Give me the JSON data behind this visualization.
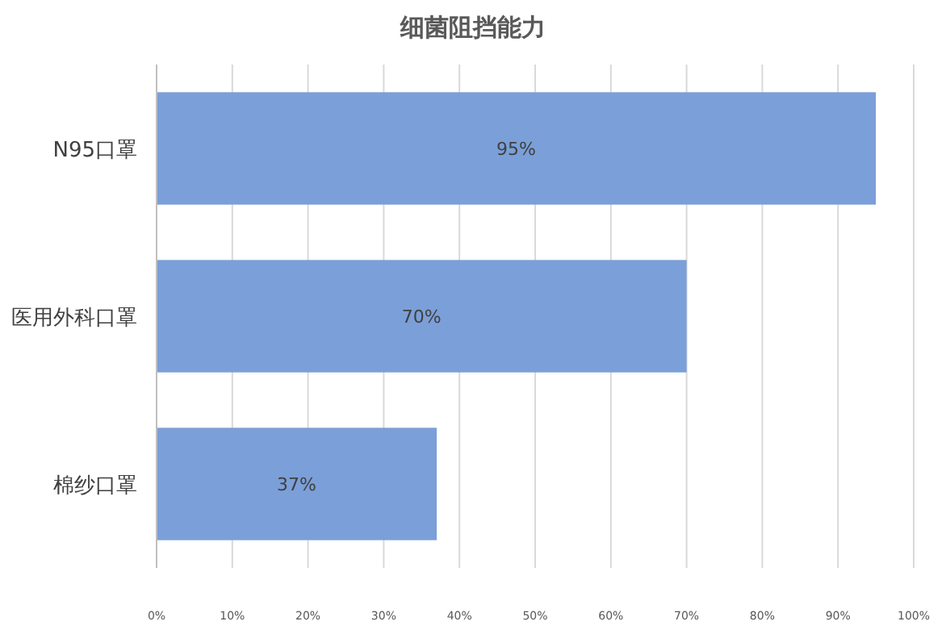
{
  "chart_data": {
    "type": "bar",
    "orientation": "horizontal",
    "title": "细菌阻挡能力",
    "categories": [
      "N95口罩",
      "医用外科口罩",
      "棉纱口罩"
    ],
    "values": [
      95,
      70,
      37
    ],
    "value_labels": [
      "95%",
      "70%",
      "37%"
    ],
    "color": "#7b9fd8",
    "xlim": [
      0,
      100
    ],
    "xticks": [
      {
        "value": 0,
        "label": "0%"
      },
      {
        "value": 10,
        "label": "10%"
      },
      {
        "value": 20,
        "label": "20%"
      },
      {
        "value": 30,
        "label": "30%"
      },
      {
        "value": 40,
        "label": "40%"
      },
      {
        "value": 50,
        "label": "50%"
      },
      {
        "value": 60,
        "label": "60%"
      },
      {
        "value": 70,
        "label": "70%"
      },
      {
        "value": 80,
        "label": "80%"
      },
      {
        "value": 90,
        "label": "90%"
      },
      {
        "value": 100,
        "label": "100%"
      }
    ],
    "grid": "x"
  }
}
